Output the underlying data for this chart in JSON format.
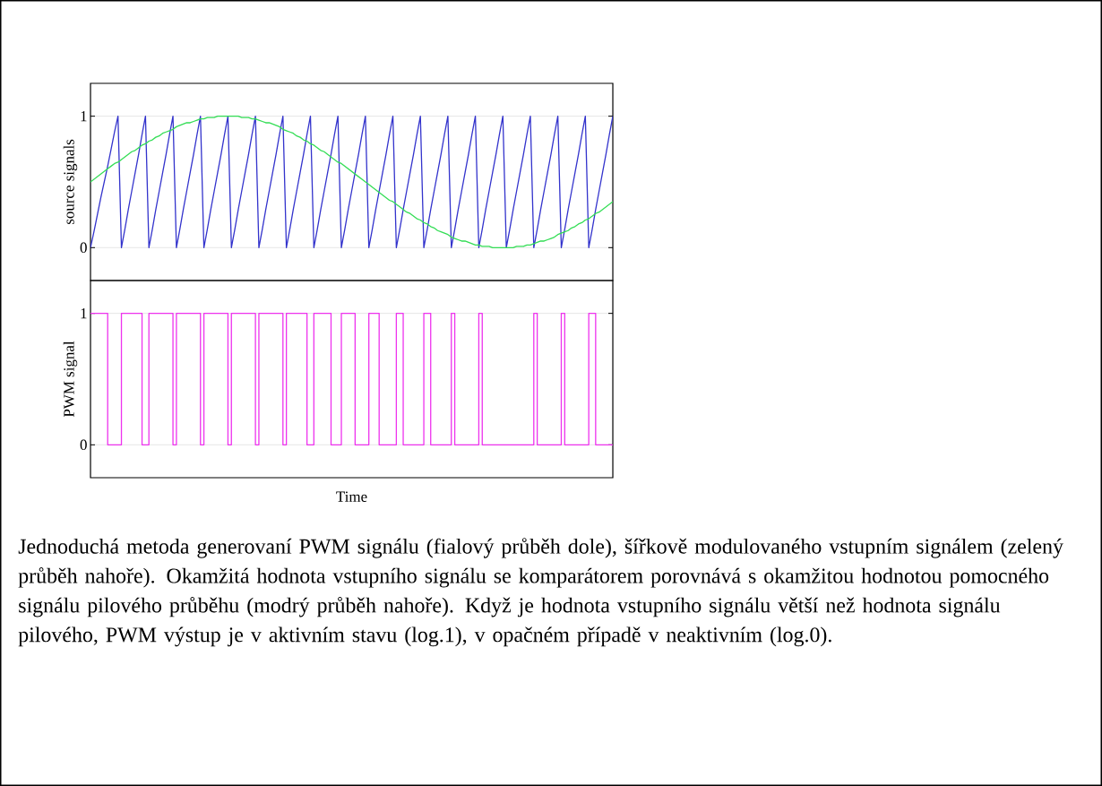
{
  "chart_data": [
    {
      "type": "line",
      "ylabel": "source signals",
      "ylim": [
        -0.25,
        1.25
      ],
      "yticks": [
        0,
        1
      ],
      "grid": "y",
      "tick_labels": "y",
      "categories": [
        null,
        null,
        null,
        null,
        null,
        null,
        null,
        null,
        null,
        null,
        null,
        null,
        null,
        null,
        null,
        null,
        null,
        null,
        null,
        null,
        null,
        null,
        null,
        null,
        null,
        null,
        null,
        null,
        null,
        null,
        null,
        null,
        null,
        null,
        null,
        null,
        null,
        null,
        null,
        null,
        null,
        null,
        null,
        null,
        null,
        null,
        null,
        null,
        null,
        null,
        null,
        null,
        null,
        null,
        null,
        null,
        null,
        null,
        null,
        null,
        null,
        null,
        null,
        null,
        null,
        null,
        null,
        null,
        null,
        null,
        null,
        null,
        null,
        null,
        null,
        null,
        null,
        null,
        null,
        null,
        null,
        null,
        null,
        null,
        null,
        null,
        null,
        null,
        null,
        null,
        null,
        null,
        null,
        null,
        null,
        null,
        null,
        null,
        null,
        null,
        null,
        null,
        null,
        null,
        null,
        null,
        null,
        null,
        null,
        null,
        null,
        null,
        null,
        null,
        null,
        null,
        null,
        null,
        null,
        null,
        null,
        null,
        null,
        null,
        null,
        null,
        null,
        null,
        null,
        null,
        null,
        null,
        null,
        null,
        null,
        null,
        null,
        null,
        null,
        null,
        null,
        null,
        null,
        null,
        null,
        null,
        null,
        null,
        null,
        null,
        null,
        null,
        null
      ],
      "series": [
        {
          "color": "#3333cc",
          "values": [
            0,
            0.12,
            0.25,
            0.38,
            0.5,
            0.62,
            0.75,
            0.88,
            1,
            0,
            0.14,
            0.29,
            0.43,
            0.57,
            0.71,
            0.86,
            1,
            0,
            0.14,
            0.29,
            0.43,
            0.57,
            0.71,
            0.86,
            1,
            0,
            0.14,
            0.29,
            0.43,
            0.57,
            0.71,
            0.86,
            1,
            0,
            0.14,
            0.29,
            0.43,
            0.57,
            0.71,
            0.86,
            1,
            0,
            0.14,
            0.29,
            0.43,
            0.57,
            0.71,
            0.86,
            1,
            0,
            0.14,
            0.29,
            0.43,
            0.57,
            0.71,
            0.86,
            1,
            0,
            0.14,
            0.29,
            0.43,
            0.57,
            0.71,
            0.86,
            1,
            0,
            0.14,
            0.29,
            0.43,
            0.57,
            0.71,
            0.86,
            1,
            0,
            0.14,
            0.29,
            0.43,
            0.57,
            0.71,
            0.86,
            1,
            0,
            0.14,
            0.29,
            0.43,
            0.57,
            0.71,
            0.86,
            1,
            0,
            0.14,
            0.29,
            0.43,
            0.57,
            0.71,
            0.86,
            1,
            0,
            0.14,
            0.29,
            0.43,
            0.57,
            0.71,
            0.86,
            1,
            0,
            0.14,
            0.29,
            0.43,
            0.57,
            0.71,
            0.86,
            1,
            0,
            0.14,
            0.29,
            0.43,
            0.57,
            0.71,
            0.86,
            1,
            0,
            0.14,
            0.29,
            0.43,
            0.57,
            0.71,
            0.86,
            1,
            0,
            0.14,
            0.29,
            0.43,
            0.57,
            0.71,
            0.86,
            1,
            0,
            0.14,
            0.29,
            0.43,
            0.57,
            0.71,
            0.86,
            1,
            0,
            0.14,
            0.29,
            0.43,
            0.57,
            0.71,
            0.86,
            1
          ]
        },
        {
          "color": "#33dd55",
          "values": [
            0.5,
            0.52,
            0.54,
            0.56,
            0.58,
            0.6,
            0.62,
            0.64,
            0.65,
            0.67,
            0.69,
            0.71,
            0.73,
            0.74,
            0.76,
            0.78,
            0.79,
            0.81,
            0.82,
            0.84,
            0.85,
            0.87,
            0.88,
            0.89,
            0.9,
            0.92,
            0.93,
            0.94,
            0.95,
            0.95,
            0.96,
            0.97,
            0.98,
            0.98,
            0.99,
            0.99,
            0.99,
            1,
            1,
            1,
            1,
            1,
            1,
            1,
            0.99,
            0.99,
            0.99,
            0.98,
            0.98,
            0.97,
            0.96,
            0.95,
            0.95,
            0.94,
            0.93,
            0.92,
            0.9,
            0.89,
            0.88,
            0.87,
            0.85,
            0.84,
            0.82,
            0.81,
            0.79,
            0.78,
            0.76,
            0.74,
            0.73,
            0.71,
            0.69,
            0.67,
            0.65,
            0.64,
            0.62,
            0.6,
            0.58,
            0.56,
            0.54,
            0.52,
            0.5,
            0.48,
            0.46,
            0.44,
            0.42,
            0.4,
            0.38,
            0.36,
            0.35,
            0.33,
            0.31,
            0.29,
            0.27,
            0.26,
            0.24,
            0.22,
            0.21,
            0.19,
            0.18,
            0.16,
            0.15,
            0.13,
            0.12,
            0.11,
            0.1,
            0.08,
            0.07,
            0.06,
            0.05,
            0.05,
            0.04,
            0.03,
            0.02,
            0.02,
            0.01,
            0.01,
            0.01,
            0,
            0,
            0,
            0,
            0,
            0,
            0,
            0.01,
            0.01,
            0.01,
            0.02,
            0.02,
            0.03,
            0.04,
            0.05,
            0.05,
            0.06,
            0.07,
            0.08,
            0.1,
            0.11,
            0.12,
            0.13,
            0.15,
            0.16,
            0.18,
            0.19,
            0.21,
            0.22,
            0.24,
            0.26,
            0.27,
            0.29,
            0.31,
            0.33,
            0.35
          ]
        }
      ]
    },
    {
      "type": "step",
      "ylabel": "PWM signal",
      "xlabel": "Time",
      "ylim": [
        -0.25,
        1.25
      ],
      "yticks": [
        0,
        1
      ],
      "grid": "y",
      "tick_labels": "y",
      "categories": [
        null,
        null,
        null,
        null,
        null,
        null,
        null,
        null,
        null,
        null,
        null,
        null,
        null,
        null,
        null,
        null,
        null,
        null,
        null,
        null,
        null,
        null,
        null,
        null,
        null,
        null,
        null,
        null,
        null,
        null,
        null,
        null,
        null,
        null,
        null,
        null,
        null,
        null,
        null,
        null,
        null,
        null,
        null,
        null,
        null,
        null,
        null,
        null,
        null,
        null,
        null,
        null,
        null,
        null,
        null,
        null,
        null,
        null,
        null,
        null,
        null,
        null,
        null,
        null,
        null,
        null,
        null,
        null,
        null,
        null,
        null,
        null,
        null,
        null,
        null,
        null,
        null,
        null,
        null,
        null,
        null,
        null,
        null,
        null,
        null,
        null,
        null,
        null,
        null,
        null,
        null,
        null,
        null,
        null,
        null,
        null,
        null,
        null,
        null,
        null,
        null,
        null,
        null,
        null,
        null,
        null,
        null,
        null,
        null,
        null,
        null,
        null,
        null,
        null,
        null,
        null,
        null,
        null,
        null,
        null,
        null,
        null,
        null,
        null,
        null,
        null,
        null,
        null,
        null,
        null,
        null,
        null,
        null,
        null,
        null,
        null,
        null,
        null,
        null,
        null,
        null,
        null,
        null,
        null,
        null,
        null,
        null,
        null,
        null,
        null,
        null,
        null,
        null
      ],
      "series": [
        {
          "color": "#ee33ee",
          "values": [
            1,
            1,
            1,
            1,
            1,
            0,
            0,
            0,
            0,
            1,
            1,
            1,
            1,
            1,
            1,
            0,
            0,
            1,
            1,
            1,
            1,
            1,
            1,
            1,
            0,
            1,
            1,
            1,
            1,
            1,
            1,
            1,
            0,
            1,
            1,
            1,
            1,
            1,
            1,
            1,
            0,
            1,
            1,
            1,
            1,
            1,
            1,
            1,
            0,
            1,
            1,
            1,
            1,
            1,
            1,
            1,
            0,
            1,
            1,
            1,
            1,
            1,
            1,
            0,
            0,
            1,
            1,
            1,
            1,
            1,
            0,
            0,
            0,
            1,
            1,
            1,
            1,
            0,
            0,
            0,
            0,
            1,
            1,
            1,
            0,
            0,
            0,
            0,
            0,
            1,
            1,
            0,
            0,
            0,
            0,
            0,
            0,
            1,
            1,
            0,
            0,
            0,
            0,
            0,
            0,
            1,
            0,
            0,
            0,
            0,
            0,
            0,
            0,
            1,
            0,
            0,
            0,
            0,
            0,
            0,
            0,
            0,
            0,
            0,
            0,
            0,
            0,
            0,
            0,
            1,
            0,
            0,
            0,
            0,
            0,
            0,
            0,
            1,
            0,
            0,
            0,
            0,
            0,
            0,
            0,
            1,
            1,
            0,
            0,
            0,
            0,
            0,
            0
          ]
        }
      ],
      "annotations": [
        "Jednoduchá metoda generovaní PWM signálu (fialový průběh dole), šířkově modulovaného vstupním signálem (zelený průběh nahoře). Okamžitá hodnota vstupního signálu se komparátorem porovnává s okamžitou hodnotou pomocného signálu pilového průběhu (modrý průběh nahoře). Když je hodnota vstupního signálu větší než hodnota signálu pilového, PWM výstup je v aktivním stavu (log.1), v opačném případě v neaktivním (log.0)."
      ]
    }
  ]
}
